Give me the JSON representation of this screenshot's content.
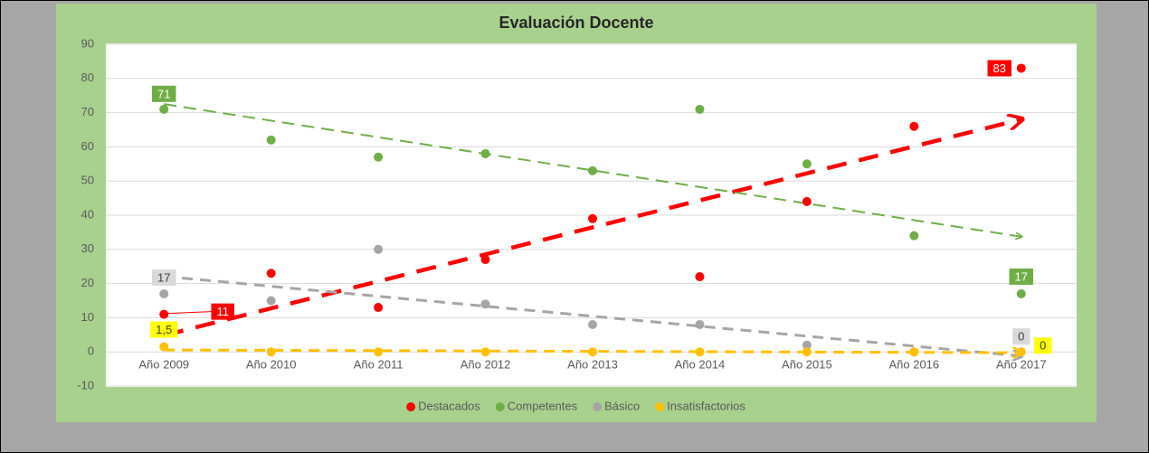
{
  "chart_data": {
    "type": "scatter",
    "title": "Evaluación Docente",
    "categories": [
      "Año 2009",
      "Año 2010",
      "Año 2011",
      "Año 2012",
      "Año 2013",
      "Año 2014",
      "Año 2015",
      "Año 2016",
      "Año 2017"
    ],
    "ylim": [
      -10,
      90
    ],
    "yticks": [
      -10,
      0,
      10,
      20,
      30,
      40,
      50,
      60,
      70,
      80,
      90
    ],
    "grid": true,
    "trendline": true,
    "legend": "bottom",
    "series": [
      {
        "name": "Destacados",
        "color": "#ff0000",
        "values": [
          11,
          23,
          13,
          27,
          39,
          22,
          44,
          66,
          83
        ],
        "value_labels": [
          "11",
          null,
          null,
          null,
          null,
          null,
          null,
          null,
          "83"
        ]
      },
      {
        "name": "Competentes",
        "color": "#70ad47",
        "values": [
          71,
          62,
          57,
          58,
          53,
          71,
          55,
          34,
          17
        ],
        "value_labels": [
          "71",
          null,
          null,
          null,
          null,
          null,
          null,
          null,
          "17"
        ]
      },
      {
        "name": "Básico",
        "color": "#a5a5a5",
        "values": [
          17,
          15,
          30,
          14,
          8,
          8,
          2,
          0,
          0
        ],
        "value_labels": [
          "17",
          null,
          null,
          null,
          null,
          null,
          null,
          null,
          "0"
        ]
      },
      {
        "name": "Insatisfactorios",
        "color": "#ffc000",
        "values": [
          1.5,
          0,
          0,
          0,
          0,
          0,
          0,
          0,
          0
        ],
        "value_labels": [
          "1,5",
          null,
          null,
          null,
          null,
          null,
          null,
          null,
          "0"
        ]
      }
    ]
  }
}
